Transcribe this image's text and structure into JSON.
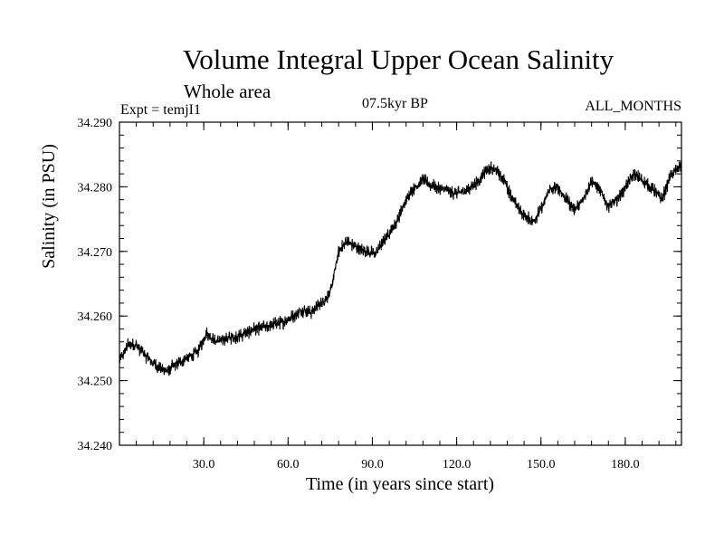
{
  "chart_data": {
    "type": "line",
    "title": "Volume Integral Upper Ocean Salinity",
    "subtitle": "Whole area",
    "left_note": "Expt = temjI1",
    "center_note": "07.5kyr BP",
    "right_note": "ALL_MONTHS",
    "xlabel": "Time (in years since start)",
    "ylabel": "Salinity (in PSU)",
    "xlim": [
      0,
      200
    ],
    "ylim": [
      34.24,
      34.29
    ],
    "xticks": [
      30,
      60,
      90,
      120,
      150,
      180
    ],
    "xtick_labels": [
      "30.0",
      "60.0",
      "90.0",
      "120.0",
      "150.0",
      "180.0"
    ],
    "yticks": [
      34.24,
      34.25,
      34.26,
      34.27,
      34.28,
      34.29
    ],
    "ytick_labels": [
      "34.240",
      "34.250",
      "34.260",
      "34.270",
      "34.280",
      "34.290"
    ],
    "series": [
      {
        "name": "salinity",
        "trend_x": [
          0,
          3,
          6,
          10,
          14,
          17,
          20,
          24,
          28,
          31,
          34,
          38,
          43,
          48,
          53,
          58,
          62,
          65,
          68,
          72,
          75,
          78,
          81,
          85,
          88,
          91,
          94,
          98,
          101,
          104,
          108,
          112,
          116,
          120,
          124,
          128,
          131,
          134,
          137,
          140,
          143,
          147,
          150,
          153,
          156,
          159,
          162,
          165,
          168,
          171,
          174,
          177,
          180,
          183,
          186,
          190,
          193,
          196,
          200
        ],
        "trend_y": [
          34.253,
          34.2555,
          34.2555,
          34.2535,
          34.252,
          34.2515,
          34.2525,
          34.2535,
          34.2545,
          34.2575,
          34.256,
          34.2565,
          34.257,
          34.258,
          34.2585,
          34.259,
          34.26,
          34.261,
          34.2605,
          34.262,
          34.2635,
          34.27,
          34.2715,
          34.2705,
          34.27,
          34.2695,
          34.2715,
          34.274,
          34.277,
          34.2795,
          34.281,
          34.28,
          34.2795,
          34.279,
          34.2795,
          34.281,
          34.283,
          34.2825,
          34.281,
          34.278,
          34.276,
          34.2745,
          34.2765,
          34.2795,
          34.28,
          34.278,
          34.2765,
          34.278,
          34.281,
          34.2795,
          34.277,
          34.278,
          34.28,
          34.282,
          34.281,
          34.2795,
          34.278,
          34.2815,
          34.2835
        ],
        "noise_amplitude": 0.0012,
        "points_per_year": 12
      }
    ]
  }
}
